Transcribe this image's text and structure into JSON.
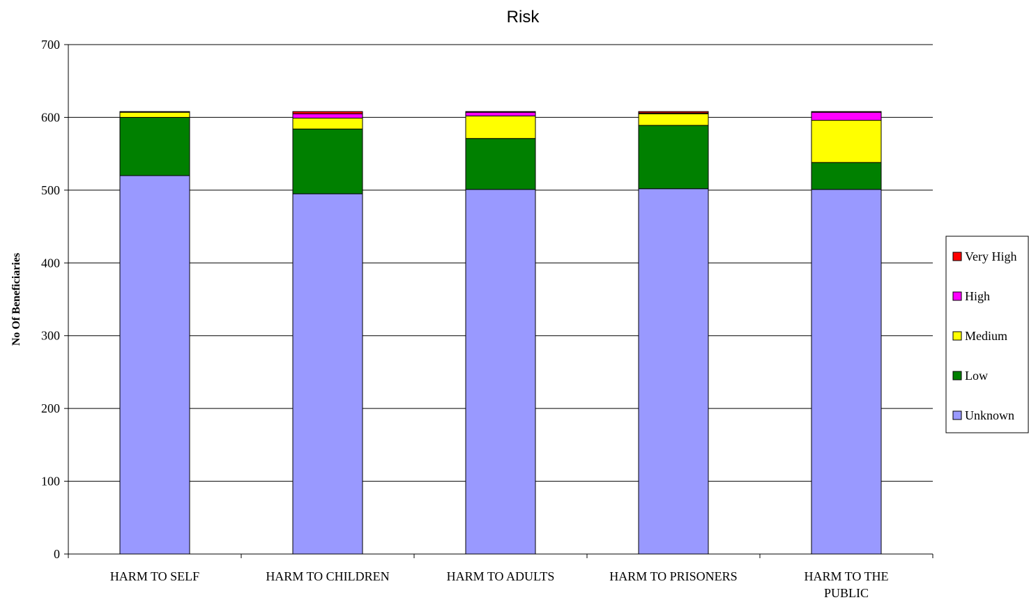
{
  "chart_data": {
    "type": "bar",
    "stacked": true,
    "title": "Risk",
    "xlabel": "",
    "ylabel": "No Of Beneficiaries",
    "ylim": [
      0,
      700
    ],
    "yticks": [
      0,
      100,
      200,
      300,
      400,
      500,
      600,
      700
    ],
    "grid": true,
    "legend_position": "right",
    "categories": [
      [
        "HARM TO SELF"
      ],
      [
        "HARM TO CHILDREN"
      ],
      [
        "HARM TO ADULTS"
      ],
      [
        "HARM TO PRISONERS"
      ],
      [
        "HARM TO THE",
        "PUBLIC"
      ]
    ],
    "series": [
      {
        "name": "Unknown",
        "color": "#9999ff",
        "values": [
          520,
          495,
          501,
          502,
          501
        ]
      },
      {
        "name": "Low",
        "color": "#008000",
        "values": [
          80,
          89,
          70,
          87,
          37
        ]
      },
      {
        "name": "Medium",
        "color": "#ffff00",
        "values": [
          7,
          15,
          31,
          16,
          58
        ]
      },
      {
        "name": "High",
        "color": "#ff00ff",
        "values": [
          1,
          6,
          5,
          1,
          11
        ]
      },
      {
        "name": "Very High",
        "color": "#ff0000",
        "values": [
          0,
          3,
          1,
          2,
          1
        ]
      }
    ]
  }
}
